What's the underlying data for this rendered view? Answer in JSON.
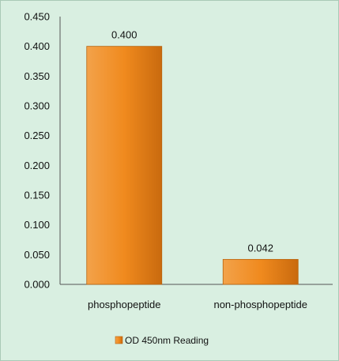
{
  "chart_data": {
    "type": "bar",
    "categories": [
      "phosphopeptide",
      "non-phosphopeptide"
    ],
    "series": [
      {
        "name": "OD 450nm Reading",
        "values": [
          0.4,
          0.042
        ],
        "data_labels": [
          "0.400",
          "0.042"
        ],
        "color": "#f08a1e"
      }
    ],
    "ylim": [
      0,
      0.45
    ],
    "yticks": [
      0.0,
      0.05,
      0.1,
      0.15,
      0.2,
      0.25,
      0.3,
      0.35,
      0.4,
      0.45
    ],
    "ytick_labels": [
      "0.000",
      "0.050",
      "0.100",
      "0.150",
      "0.200",
      "0.250",
      "0.300",
      "0.350",
      "0.400",
      "0.450"
    ],
    "grid": false,
    "legend": "bottom",
    "background_color": "#d9efe1"
  }
}
